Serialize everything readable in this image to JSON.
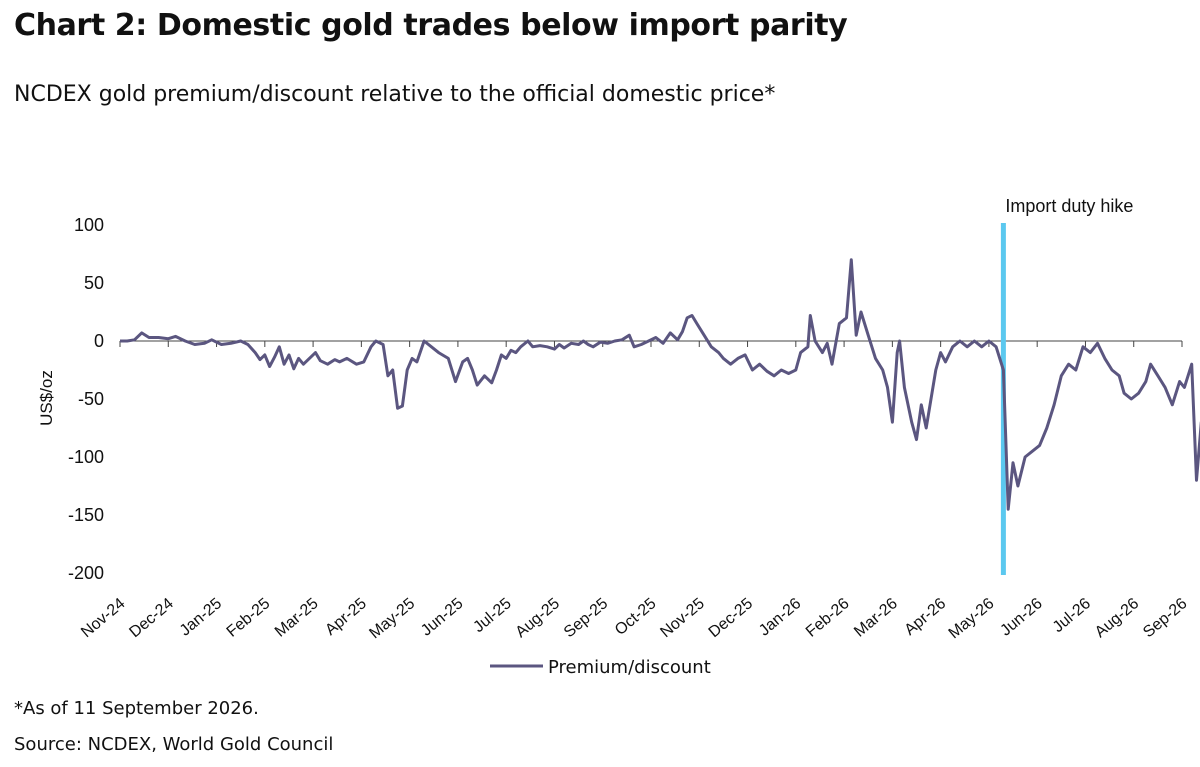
{
  "title": "Chart 2: Domestic gold trades below import parity",
  "subtitle": "NCDEX gold premium/discount relative to the official domestic price*",
  "footnote": "*As of 11 September 2026.",
  "source": "Source: NCDEX, World Gold Council",
  "chart_data": {
    "type": "line",
    "ylabel": "US$/oz",
    "ylim": [
      -200,
      100
    ],
    "yticks": [
      100,
      50,
      0,
      -50,
      -100,
      -150,
      -200
    ],
    "x_categories": [
      "Nov-24",
      "Dec-24",
      "Jan-25",
      "Feb-25",
      "Mar-25",
      "Apr-25",
      "May-25",
      "Jun-25",
      "Jul-25",
      "Aug-25",
      "Sep-25",
      "Oct-25",
      "Nov-25",
      "Dec-25",
      "Jan-26",
      "Feb-26",
      "Mar-26",
      "Apr-26",
      "May-26",
      "Jun-26",
      "Jul-26",
      "Aug-26",
      "Sep-26"
    ],
    "grid": false,
    "zero_line": true,
    "legend_position": "bottom-center",
    "colors": {
      "series": "#5b5680",
      "annotation": "#5bc8ef"
    },
    "annotation": {
      "label": "Import duty hike",
      "x": 18.3
    },
    "series": [
      {
        "name": "Premium/discount",
        "points": [
          [
            0.0,
            0
          ],
          [
            0.15,
            0
          ],
          [
            0.3,
            1
          ],
          [
            0.45,
            7
          ],
          [
            0.6,
            3
          ],
          [
            0.8,
            3
          ],
          [
            1.0,
            2
          ],
          [
            1.15,
            4
          ],
          [
            1.35,
            0
          ],
          [
            1.55,
            -3
          ],
          [
            1.75,
            -2
          ],
          [
            1.9,
            1
          ],
          [
            2.1,
            -3
          ],
          [
            2.3,
            -2
          ],
          [
            2.5,
            0
          ],
          [
            2.65,
            -3
          ],
          [
            2.8,
            -10
          ],
          [
            2.9,
            -16
          ],
          [
            3.0,
            -12
          ],
          [
            3.1,
            -22
          ],
          [
            3.2,
            -14
          ],
          [
            3.3,
            -5
          ],
          [
            3.4,
            -20
          ],
          [
            3.5,
            -12
          ],
          [
            3.6,
            -24
          ],
          [
            3.7,
            -15
          ],
          [
            3.8,
            -20
          ],
          [
            3.95,
            -14
          ],
          [
            4.05,
            -10
          ],
          [
            4.15,
            -17
          ],
          [
            4.3,
            -20
          ],
          [
            4.45,
            -16
          ],
          [
            4.55,
            -18
          ],
          [
            4.7,
            -15
          ],
          [
            4.9,
            -20
          ],
          [
            5.05,
            -18
          ],
          [
            5.2,
            -5
          ],
          [
            5.3,
            0
          ],
          [
            5.45,
            -3
          ],
          [
            5.55,
            -30
          ],
          [
            5.65,
            -25
          ],
          [
            5.75,
            -58
          ],
          [
            5.85,
            -56
          ],
          [
            5.95,
            -25
          ],
          [
            6.05,
            -15
          ],
          [
            6.15,
            -18
          ],
          [
            6.3,
            0
          ],
          [
            6.45,
            -5
          ],
          [
            6.6,
            -10
          ],
          [
            6.8,
            -15
          ],
          [
            6.95,
            -35
          ],
          [
            7.1,
            -18
          ],
          [
            7.2,
            -15
          ],
          [
            7.3,
            -25
          ],
          [
            7.4,
            -38
          ],
          [
            7.55,
            -30
          ],
          [
            7.7,
            -36
          ],
          [
            7.8,
            -25
          ],
          [
            7.9,
            -12
          ],
          [
            8.0,
            -15
          ],
          [
            8.1,
            -8
          ],
          [
            8.2,
            -10
          ],
          [
            8.3,
            -5
          ],
          [
            8.45,
            0
          ],
          [
            8.55,
            -5
          ],
          [
            8.7,
            -4
          ],
          [
            8.85,
            -5
          ],
          [
            9.0,
            -7
          ],
          [
            9.1,
            -3
          ],
          [
            9.2,
            -6
          ],
          [
            9.35,
            -2
          ],
          [
            9.5,
            -3
          ],
          [
            9.6,
            0
          ],
          [
            9.7,
            -3
          ],
          [
            9.8,
            -5
          ],
          [
            9.95,
            -1
          ],
          [
            10.1,
            -2
          ],
          [
            10.25,
            0
          ],
          [
            10.4,
            1
          ],
          [
            10.55,
            5
          ],
          [
            10.65,
            -5
          ],
          [
            10.8,
            -3
          ],
          [
            10.95,
            0
          ],
          [
            11.1,
            3
          ],
          [
            11.25,
            -2
          ],
          [
            11.4,
            7
          ],
          [
            11.55,
            1
          ],
          [
            11.65,
            8
          ],
          [
            11.75,
            20
          ],
          [
            11.85,
            22
          ],
          [
            11.95,
            15
          ],
          [
            12.1,
            5
          ],
          [
            12.25,
            -5
          ],
          [
            12.4,
            -10
          ],
          [
            12.5,
            -15
          ],
          [
            12.65,
            -20
          ],
          [
            12.8,
            -15
          ],
          [
            12.95,
            -12
          ],
          [
            13.1,
            -25
          ],
          [
            13.25,
            -20
          ],
          [
            13.4,
            -26
          ],
          [
            13.55,
            -30
          ],
          [
            13.7,
            -25
          ],
          [
            13.85,
            -28
          ],
          [
            14.0,
            -25
          ],
          [
            14.1,
            -10
          ],
          [
            14.25,
            -5
          ],
          [
            14.3,
            22
          ],
          [
            14.4,
            0
          ],
          [
            14.55,
            -10
          ],
          [
            14.65,
            -2
          ],
          [
            14.75,
            -20
          ],
          [
            14.9,
            15
          ],
          [
            15.05,
            20
          ],
          [
            15.15,
            70
          ],
          [
            15.25,
            5
          ],
          [
            15.35,
            25
          ],
          [
            15.5,
            5
          ],
          [
            15.65,
            -15
          ],
          [
            15.8,
            -25
          ],
          [
            15.9,
            -40
          ],
          [
            16.0,
            -70
          ],
          [
            16.1,
            -10
          ],
          [
            16.15,
            0
          ],
          [
            16.25,
            -40
          ],
          [
            16.4,
            -70
          ],
          [
            16.5,
            -85
          ],
          [
            16.6,
            -55
          ],
          [
            16.7,
            -75
          ],
          [
            16.8,
            -50
          ],
          [
            16.9,
            -25
          ],
          [
            17.0,
            -10
          ],
          [
            17.1,
            -18
          ],
          [
            17.25,
            -5
          ],
          [
            17.4,
            0
          ],
          [
            17.55,
            -5
          ],
          [
            17.7,
            0
          ],
          [
            17.85,
            -5
          ],
          [
            18.0,
            0
          ],
          [
            18.15,
            -5
          ],
          [
            18.3,
            -25
          ],
          [
            18.4,
            -145
          ],
          [
            18.5,
            -105
          ],
          [
            18.6,
            -125
          ],
          [
            18.75,
            -100
          ],
          [
            18.9,
            -95
          ],
          [
            19.05,
            -90
          ],
          [
            19.2,
            -75
          ],
          [
            19.35,
            -55
          ],
          [
            19.5,
            -30
          ],
          [
            19.65,
            -20
          ],
          [
            19.8,
            -25
          ],
          [
            19.95,
            -5
          ],
          [
            20.1,
            -10
          ],
          [
            20.25,
            -2
          ],
          [
            20.4,
            -15
          ],
          [
            20.55,
            -25
          ],
          [
            20.7,
            -30
          ],
          [
            20.8,
            -45
          ],
          [
            20.95,
            -50
          ],
          [
            21.1,
            -45
          ],
          [
            21.25,
            -35
          ],
          [
            21.35,
            -20
          ],
          [
            21.5,
            -30
          ],
          [
            21.65,
            -40
          ],
          [
            21.8,
            -55
          ],
          [
            21.95,
            -35
          ],
          [
            22.05,
            -40
          ],
          [
            22.2,
            -20
          ],
          [
            22.3,
            -120
          ],
          [
            22.4,
            -70
          ],
          [
            22.55,
            -55
          ],
          [
            22.7,
            -60
          ],
          [
            22.85,
            -65
          ],
          [
            22.95,
            -78
          ]
        ]
      }
    ]
  }
}
